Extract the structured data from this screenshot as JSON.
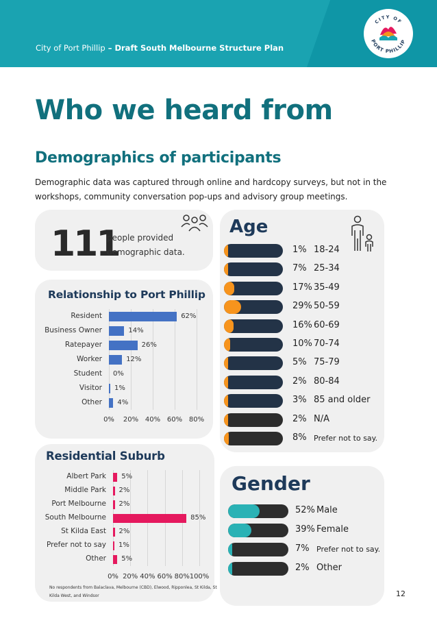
{
  "header": {
    "org": "City of Port Phillip",
    "separator": " – ",
    "doc_title": "Draft South Melbourne Structure Plan",
    "logo_top": "CITY OF",
    "logo_bottom": "PORT PHILLIP"
  },
  "page": {
    "title": "Who we heard from",
    "subtitle": "Demographics of participants",
    "intro": "Demographic data was captured through online and hardcopy surveys, but not in the workshops, community conversation pop-ups and advisory group meetings.",
    "page_number": "12"
  },
  "summary": {
    "count": "111",
    "label": "people provided demographic data."
  },
  "relationship": {
    "title": "Relationship to Port Phillip",
    "ticks": [
      "0%",
      "20%",
      "40%",
      "60%",
      "80%"
    ],
    "bar_color": "#4472c4"
  },
  "suburb": {
    "title": "Residential Suburb",
    "ticks": [
      "0%",
      "20%",
      "40%",
      "60%",
      "80%",
      "100%"
    ],
    "bar_color": "#e5195e",
    "footnote": "No respondents from Balaclava, Melbourne (CBD), Elwood, Ripponlea, St Kilda, St Kilda West, and Windsor"
  },
  "age": {
    "title": "Age",
    "rows": [
      {
        "pct": "1%",
        "label": "18-24",
        "small": false,
        "value": 0.01
      },
      {
        "pct": "7%",
        "label": "25-34",
        "small": false,
        "value": 0.07
      },
      {
        "pct": "17%",
        "label": "35-49",
        "small": false,
        "value": 0.17
      },
      {
        "pct": "29%",
        "label": "50-59",
        "small": false,
        "value": 0.29
      },
      {
        "pct": "16%",
        "label": "60-69",
        "small": false,
        "value": 0.16
      },
      {
        "pct": "10%",
        "label": "70-74",
        "small": false,
        "value": 0.1
      },
      {
        "pct": "5%",
        "label": "75-79",
        "small": false,
        "value": 0.05
      },
      {
        "pct": "2%",
        "label": "80-84",
        "small": false,
        "value": 0.02
      },
      {
        "pct": "3%",
        "label": "85 and older",
        "small": false,
        "value": 0.03
      },
      {
        "pct": "2%",
        "label": "N/A",
        "small": false,
        "value": 0.02
      },
      {
        "pct": "8%",
        "label": "Prefer not to say.",
        "small": true,
        "value": 0.08
      }
    ],
    "fill_color": "#f7941d",
    "track_color": "#233347",
    "track_color_alt": "#2d2d2d"
  },
  "gender": {
    "title": "Gender",
    "rows": [
      {
        "pct": "52%",
        "label": "Male",
        "small": false,
        "value": 0.52
      },
      {
        "pct": "39%",
        "label": "Female",
        "small": false,
        "value": 0.39
      },
      {
        "pct": "7%",
        "label": "Prefer not to say.",
        "small": true,
        "value": 0.07
      },
      {
        "pct": "2%",
        "label": "Other",
        "small": false,
        "value": 0.02
      }
    ],
    "fill_color": "#2ab2b5",
    "track_color": "#2d2d2d"
  },
  "chart_data": [
    {
      "type": "bar",
      "title": "Relationship to Port Phillip",
      "orientation": "horizontal",
      "categories": [
        "Resident",
        "Business Owner",
        "Ratepayer",
        "Worker",
        "Student",
        "Visitor",
        "Other"
      ],
      "values": [
        62,
        14,
        26,
        12,
        0,
        1,
        4
      ],
      "value_labels": [
        "62%",
        "14%",
        "26%",
        "12%",
        "0%",
        "1%",
        "4%"
      ],
      "xlim": [
        0,
        80
      ],
      "grid": true
    },
    {
      "type": "bar",
      "title": "Residential Suburb",
      "orientation": "horizontal",
      "categories": [
        "Albert Park",
        "Middle Park",
        "Port Melbourne",
        "South Melbourne",
        "St Kilda East",
        "Prefer not to say",
        "Other"
      ],
      "values": [
        5,
        2,
        2,
        85,
        2,
        1,
        5
      ],
      "value_labels": [
        "5%",
        "2%",
        "2%",
        "85%",
        "2%",
        "1%",
        "5%"
      ],
      "xlim": [
        0,
        100
      ],
      "grid": true
    }
  ]
}
